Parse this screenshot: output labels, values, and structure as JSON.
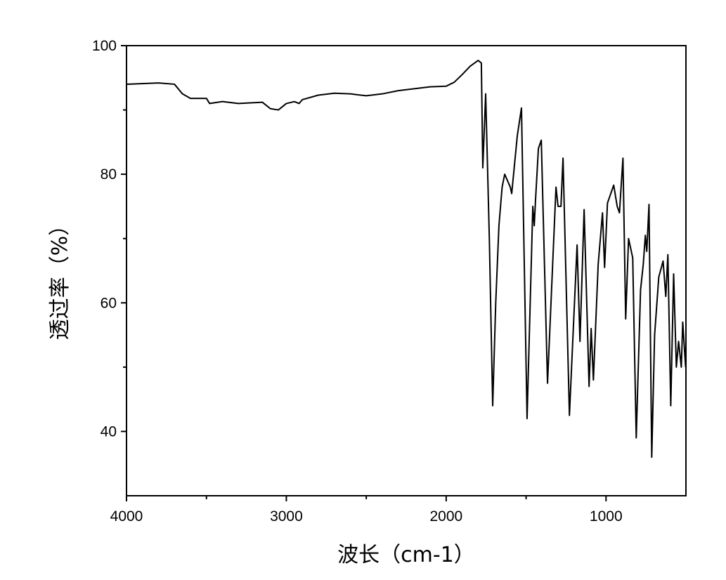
{
  "chart_data": {
    "type": "line",
    "xlabel": "波长（cm-1）",
    "ylabel": "透过率（%）",
    "xlim": [
      4000,
      500
    ],
    "ylim": [
      30,
      100
    ],
    "xticks": [
      4000,
      3000,
      2000,
      1000
    ],
    "x_minor_ticks": [
      3500,
      2500,
      1500
    ],
    "yticks": [
      40,
      60,
      80,
      100
    ],
    "y_minor_ticks": [
      50,
      70,
      90
    ],
    "series": [
      {
        "color": "#000000",
        "x": [
          4000,
          3800,
          3700,
          3650,
          3600,
          3500,
          3480,
          3400,
          3300,
          3150,
          3100,
          3050,
          3000,
          2950,
          2920,
          2900,
          2800,
          2700,
          2600,
          2500,
          2400,
          2300,
          2200,
          2100,
          2000,
          1950,
          1900,
          1850,
          1800,
          1780,
          1771,
          1753,
          1730,
          1709,
          1690,
          1670,
          1650,
          1634,
          1599,
          1590,
          1555,
          1529,
          1494,
          1458,
          1449,
          1441,
          1423,
          1405,
          1366,
          1313,
          1300,
          1282,
          1269,
          1229,
          1181,
          1163,
          1137,
          1106,
          1093,
          1079,
          1049,
          1022,
          1009,
          991,
          952,
          930,
          916,
          894,
          877,
          859,
          833,
          811,
          784,
          767,
          754,
          745,
          731,
          714,
          696,
          670,
          643,
          626,
          613,
          595,
          577,
          560,
          546,
          529,
          520,
          502
        ],
        "values": [
          94.0,
          94.2,
          94.0,
          92.5,
          91.8,
          91.8,
          91.0,
          91.3,
          91.0,
          91.2,
          90.2,
          90.0,
          91.0,
          91.3,
          91.0,
          91.6,
          92.3,
          92.6,
          92.5,
          92.2,
          92.5,
          93.0,
          93.3,
          93.6,
          93.7,
          94.3,
          95.5,
          96.8,
          97.7,
          97.3,
          81.0,
          92.5,
          70.0,
          44.0,
          60.0,
          72.0,
          78.0,
          80.0,
          78.0,
          77.0,
          86.0,
          90.3,
          42.0,
          75.0,
          72.0,
          76.0,
          84.0,
          85.3,
          47.5,
          78.0,
          75.0,
          75.0,
          82.5,
          42.5,
          69.0,
          54.0,
          74.5,
          47.0,
          56.0,
          48.0,
          66.0,
          74.0,
          65.5,
          75.5,
          78.3,
          75.0,
          74.0,
          82.5,
          57.5,
          70.0,
          67.0,
          39.0,
          62.0,
          66.0,
          70.5,
          68.0,
          75.3,
          36.0,
          55.0,
          64.0,
          66.5,
          61.0,
          67.5,
          44.0,
          64.5,
          50.0,
          54.0,
          50.0,
          57.0,
          50.0
        ]
      }
    ]
  }
}
